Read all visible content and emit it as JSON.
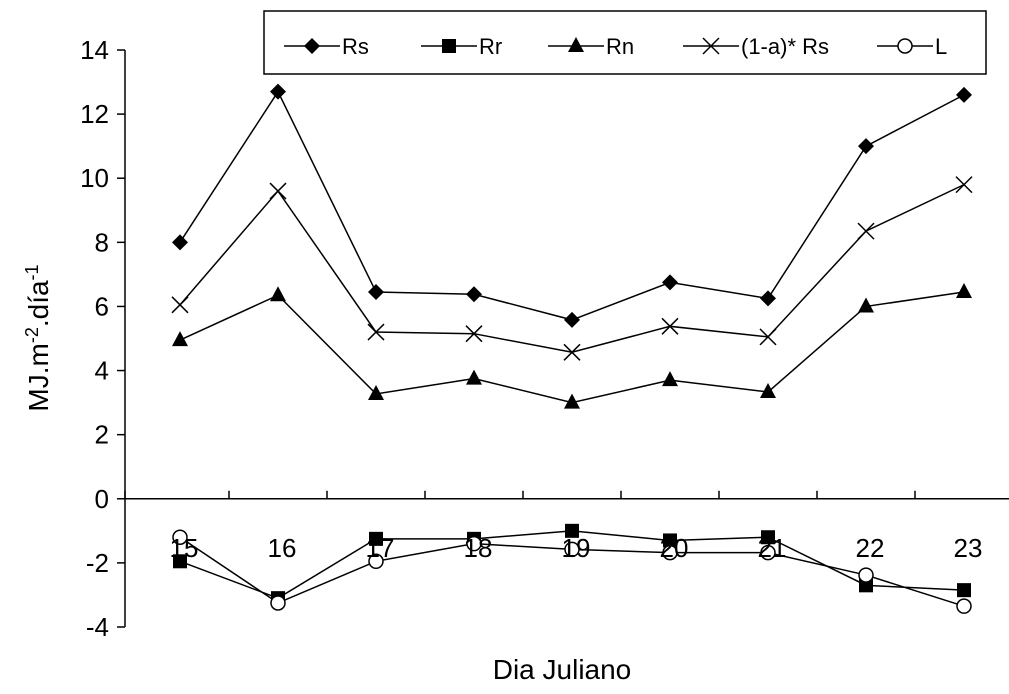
{
  "chart_data": {
    "type": "line",
    "title": "",
    "xlabel": "Dia Juliano",
    "ylabel": "MJ.m-2.día-1",
    "ylabel_parts": {
      "base1": "MJ.m",
      "sup1": "-2",
      "base2": ".día",
      "sup2": "-1"
    },
    "x": [
      "15",
      "16",
      "17",
      "18",
      "19",
      "20",
      "21",
      "22",
      "23"
    ],
    "ylim": [
      -4,
      14
    ],
    "yticks": [
      "-4",
      "-2",
      "0",
      "2",
      "4",
      "6",
      "8",
      "10",
      "12",
      "14"
    ],
    "grid": false,
    "legend_position": "top",
    "series": [
      {
        "name": "Rs",
        "marker": "diamond",
        "values": [
          8.0,
          12.7,
          6.45,
          6.38,
          5.58,
          6.75,
          6.25,
          11.0,
          12.6
        ]
      },
      {
        "name": "Rr",
        "marker": "square",
        "values": [
          -1.95,
          -3.1,
          -1.25,
          -1.25,
          -1.0,
          -1.3,
          -1.2,
          -2.7,
          -2.85
        ]
      },
      {
        "name": "Rn",
        "marker": "triangle",
        "values": [
          4.95,
          6.35,
          3.27,
          3.75,
          3.0,
          3.7,
          3.33,
          6.0,
          6.45
        ]
      },
      {
        "name": "(1-a)* Rs",
        "marker": "x",
        "values": [
          6.05,
          9.6,
          5.2,
          5.15,
          4.57,
          5.38,
          5.05,
          8.35,
          9.8
        ]
      },
      {
        "name": "L",
        "marker": "circle-open",
        "values": [
          -1.2,
          -3.25,
          -1.95,
          -1.4,
          -1.58,
          -1.68,
          -1.68,
          -2.38,
          -3.35
        ]
      }
    ]
  }
}
